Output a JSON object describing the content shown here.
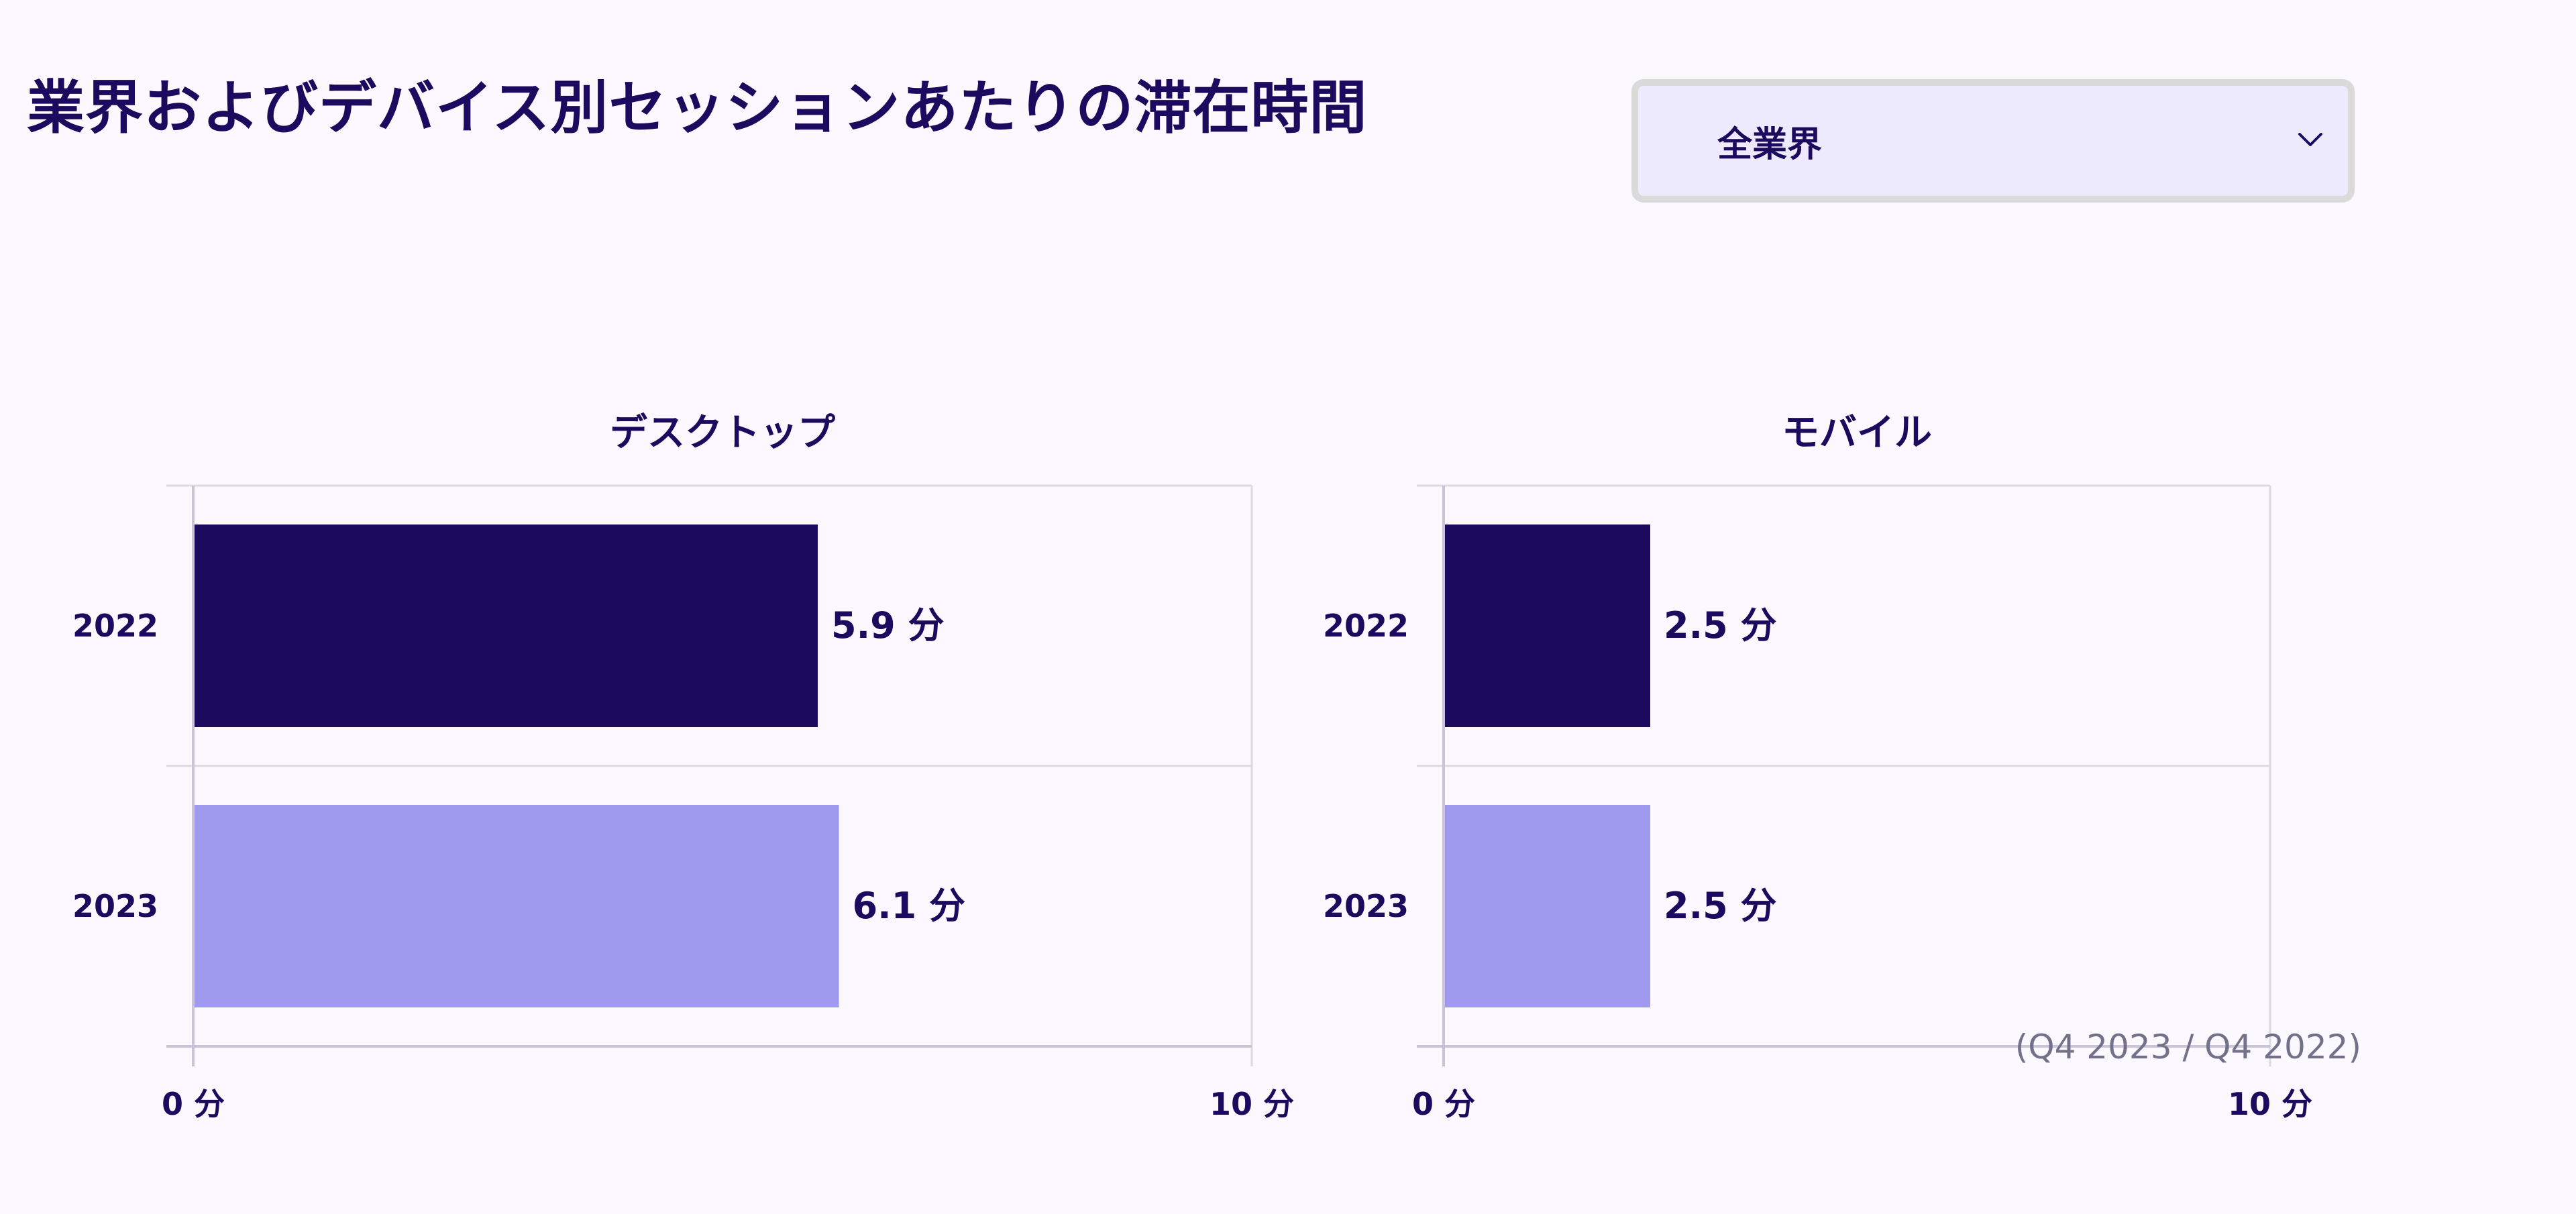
{
  "header": {
    "title": "業界およびデバイス別セッションあたりの滞在時間"
  },
  "filter": {
    "selected": "全業界",
    "icon": "chevron-down-icon"
  },
  "colors": {
    "text": "#1c0a5e",
    "bar_2022": "#1c0a5e",
    "bar_2023": "#a09aee",
    "grid": "#dcd9e3",
    "background": "#fbf9ff",
    "note": "#73708a"
  },
  "footnote": "(Q4 2023 / Q4 2022)",
  "chart_data": [
    {
      "type": "bar",
      "orientation": "horizontal",
      "title": "デスクトップ",
      "categories": [
        "2022",
        "2023"
      ],
      "values": [
        5.9,
        6.1
      ],
      "value_labels": [
        "5.9 分",
        "6.1 分"
      ],
      "xlim": [
        0,
        10
      ],
      "x_ticks": [
        "0 分",
        "10 分"
      ],
      "grid": true
    },
    {
      "type": "bar",
      "orientation": "horizontal",
      "title": "モバイル",
      "categories": [
        "2022",
        "2023"
      ],
      "values": [
        2.5,
        2.5
      ],
      "value_labels": [
        "2.5 分",
        "2.5 分"
      ],
      "xlim": [
        0,
        10
      ],
      "x_ticks": [
        "0 分",
        "10 分"
      ],
      "grid": true
    }
  ]
}
